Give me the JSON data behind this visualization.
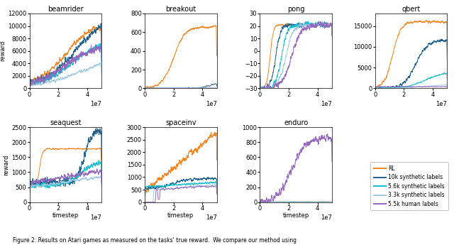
{
  "colors": {
    "RL": "#f5841f",
    "10k": "#1f5f8b",
    "5.6k": "#17becf",
    "3.3k": "#9ecae1",
    "human": "#9467bd"
  },
  "legend_labels": [
    "RL",
    "10k synthetic labels",
    "5.6k synthetic labels",
    "3.3k synthetic labels",
    "5.5k human labels"
  ],
  "games_row1": [
    "beamrider",
    "breakout",
    "pong",
    "qbert"
  ],
  "games_row2": [
    "seaquest",
    "spaceinv",
    "enduro"
  ],
  "xlim": [
    0,
    50000000.0
  ],
  "xlabel": "timestep",
  "ylabel": "reward",
  "figure_text": "Figure 2: Results on Atari games as measured on the tasks' true reward.  We compare our method using",
  "background_color": "#ffffff",
  "game_configs": {
    "beamrider": {
      "ylim": [
        0,
        12000
      ]
    },
    "breakout": {
      "ylim": [
        0,
        800
      ]
    },
    "pong": {
      "ylim": [
        -30,
        30
      ]
    },
    "qbert": {
      "ylim": [
        0,
        18000
      ]
    },
    "seaquest": {
      "ylim": [
        0,
        2500
      ]
    },
    "spaceinv": {
      "ylim": [
        0,
        3000
      ]
    },
    "enduro": {
      "ylim": [
        0,
        1000
      ]
    }
  }
}
